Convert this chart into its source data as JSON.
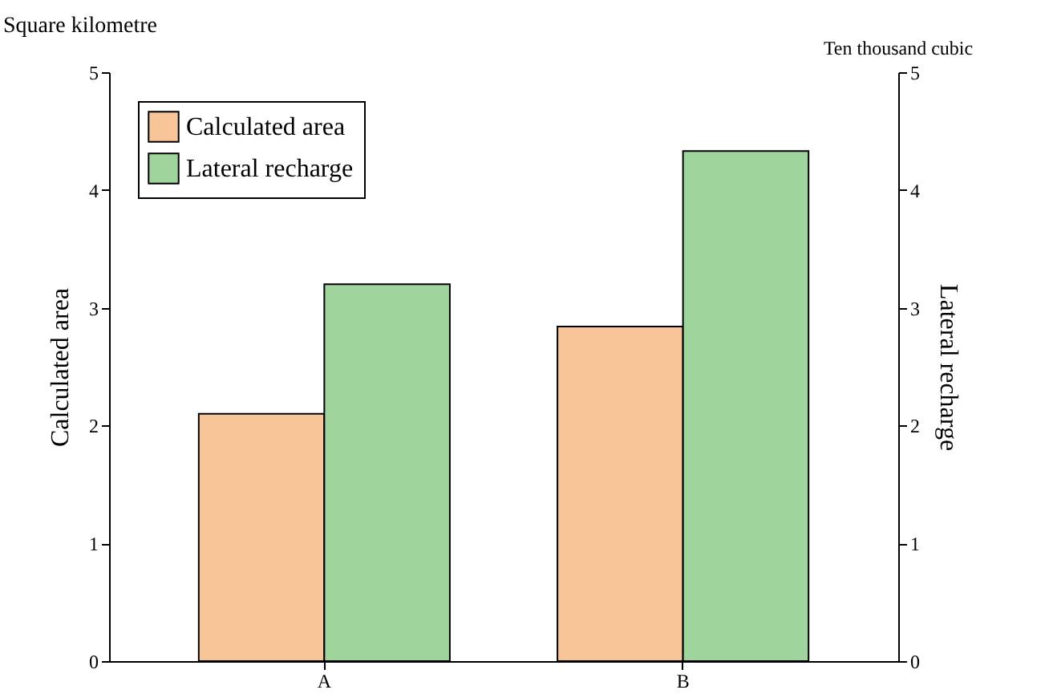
{
  "chart_data": {
    "type": "bar",
    "categories": [
      "A",
      "B"
    ],
    "ylabel": "Calculated area",
    "y2label": "Lateral recharge",
    "annotations": [
      "Square kilometre",
      "Ten thousand cubic"
    ],
    "series": [
      {
        "name": "Calculated area",
        "color": "#f7c597",
        "values": [
          2.1,
          2.84
        ],
        "axis": "y"
      },
      {
        "name": "Lateral recharge",
        "color": "#9fd49c",
        "values": [
          3.2,
          4.33
        ],
        "axis": "y2"
      }
    ],
    "ylim": [
      0,
      5
    ],
    "yticks": [
      0,
      1,
      2,
      3,
      4,
      5
    ],
    "y2lim": [
      0,
      5
    ],
    "y2ticks": [
      0,
      1,
      2,
      3,
      4,
      5
    ],
    "legend": "top left",
    "grid": false
  }
}
